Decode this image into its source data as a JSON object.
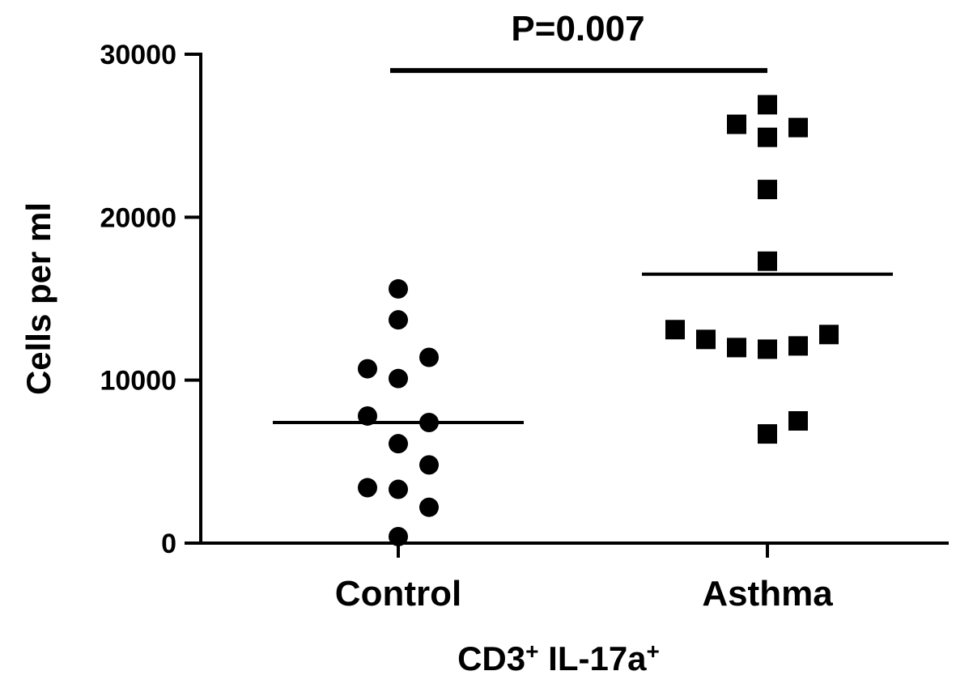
{
  "chart_data": {
    "type": "scatter",
    "title": "",
    "ylabel": "Cells per ml",
    "xlabel_main": "CD3",
    "xlabel_sup1": "+",
    "xlabel_tail": " IL-17a",
    "xlabel_sup2": "+",
    "ylim": [
      0,
      30000
    ],
    "yticks": [
      0,
      10000,
      20000,
      30000
    ],
    "ytick_labels": [
      "0",
      "10000",
      "20000",
      "30000"
    ],
    "grid": false,
    "categories": [
      "Control",
      "Asthma"
    ],
    "series": [
      {
        "category": "Control",
        "marker": "circle",
        "points": [
          {
            "dx": 0,
            "y": 15600
          },
          {
            "dx": 0,
            "y": 13700
          },
          {
            "dx": -1,
            "y": 10700
          },
          {
            "dx": 0,
            "y": 10100
          },
          {
            "dx": 1,
            "y": 11400
          },
          {
            "dx": -1,
            "y": 7800
          },
          {
            "dx": 1,
            "y": 7400
          },
          {
            "dx": 0,
            "y": 6100
          },
          {
            "dx": 1,
            "y": 4800
          },
          {
            "dx": -1,
            "y": 3400
          },
          {
            "dx": 0,
            "y": 3300
          },
          {
            "dx": 1,
            "y": 2200
          },
          {
            "dx": 0,
            "y": 400
          }
        ],
        "mean": 7400
      },
      {
        "category": "Asthma",
        "marker": "square",
        "points": [
          {
            "dx": 0,
            "y": 26900
          },
          {
            "dx": -1,
            "y": 25700
          },
          {
            "dx": 1,
            "y": 25500
          },
          {
            "dx": 0,
            "y": 24900
          },
          {
            "dx": 0,
            "y": 21700
          },
          {
            "dx": 0,
            "y": 17300
          },
          {
            "dx": -3,
            "y": 13100
          },
          {
            "dx": -2,
            "y": 12500
          },
          {
            "dx": -1,
            "y": 12000
          },
          {
            "dx": 0,
            "y": 11900
          },
          {
            "dx": 1,
            "y": 12100
          },
          {
            "dx": 2,
            "y": 12800
          },
          {
            "dx": 1,
            "y": 7500
          },
          {
            "dx": 0,
            "y": 6700
          }
        ],
        "mean": 16500
      }
    ],
    "annotation": {
      "text": "P=0.007",
      "between": [
        "Control",
        "Asthma"
      ],
      "y": 29000
    }
  }
}
